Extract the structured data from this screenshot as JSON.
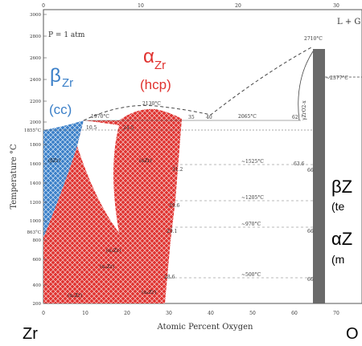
{
  "diagram": {
    "pressure_note": "P = 1 atm",
    "y_axis_label": "Temperature °C",
    "x_axis_label": "Atomic Percent Oxygen",
    "y_ticks": [
      "3000",
      "2800",
      "2600",
      "2400",
      "2200",
      "2000",
      "1855°C",
      "1800",
      "1600",
      "1400",
      "1200",
      "1000",
      "863°C",
      "800",
      "600",
      "400",
      "200"
    ],
    "x_ticks_bottom": [
      "0",
      "10",
      "20",
      "30",
      "40",
      "50",
      "60",
      "70"
    ],
    "x_ticks_top": [
      "0",
      "10",
      "20",
      "30"
    ],
    "point_labels": {
      "t2710": "2710°C",
      "t2130": "2130°C",
      "t1970": "1970°C",
      "t2065": "2065°C",
      "t2377": "~2377°C",
      "t1525": "~1525°C",
      "t1205": "~1205°C",
      "t970": "~970°C",
      "t500": "~500°C",
      "c10_5": "10.5",
      "c24_5": "24.5",
      "c35": "35",
      "c40": "40",
      "c62": "62",
      "c63_6": "63.6",
      "c66": "66",
      "c31_2": "31.2",
      "c29_6": "29.6",
      "c29_1": "29.1",
      "c28_6": "28.6",
      "c66b": "66",
      "c66c": "66"
    },
    "phase_labels_small": {
      "bzr": "(βZr)",
      "azr": "(αZr)",
      "l_g": "L + G",
      "zro2": "γZrO2-x",
      "a1": "(α₁Zr)",
      "a2": "(α₂Zr)",
      "a3": "(α₃Zr)",
      "a4": "(α₄Zr)"
    }
  },
  "overlay": {
    "beta_symbol": "β",
    "beta_sub": "Zr",
    "beta_struct": "(cc)",
    "alpha_symbol": "α",
    "alpha_sub": "Zr",
    "alpha_struct": "(hcp)",
    "right_beta": "βZ",
    "right_beta_sub": "(te",
    "right_alpha": "αZ",
    "right_alpha_sub": "(m",
    "bottom_left": "Zr",
    "bottom_right": "O"
  },
  "colors": {
    "beta_blue": "#3a7fc8",
    "alpha_red": "#e0322f",
    "oxide_bar": "#6a6a6a",
    "frame": "#555555"
  }
}
